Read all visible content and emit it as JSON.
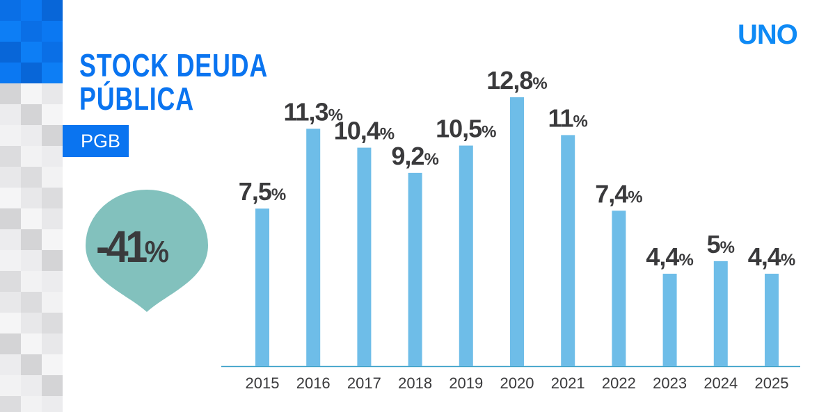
{
  "title_lines": [
    "STOCK DEUDA",
    "PÚBLICA"
  ],
  "tag": "PGB",
  "logo": "UNO",
  "badge": {
    "value": "-41",
    "unit": "%"
  },
  "colors": {
    "brand": "#0a74f0",
    "bar": "#6ebde8",
    "badge": "#82c1bd",
    "text": "#3a3a3c",
    "axis": "#3aa0c8"
  },
  "chart_data": {
    "type": "bar",
    "categories": [
      "2015",
      "2016",
      "2017",
      "2018",
      "2019",
      "2020",
      "2021",
      "2022",
      "2023",
      "2024",
      "2025"
    ],
    "values": [
      7.5,
      11.3,
      10.4,
      9.2,
      10.5,
      12.8,
      11,
      7.4,
      4.4,
      5,
      4.4
    ],
    "labels": [
      "7,5",
      "11,3",
      "10,4",
      "9,2",
      "10,5",
      "12,8",
      "11",
      "7,4",
      "4,4",
      "5",
      "4,4"
    ],
    "unit": "%",
    "ylim": [
      0,
      12.8
    ],
    "grid": false
  }
}
